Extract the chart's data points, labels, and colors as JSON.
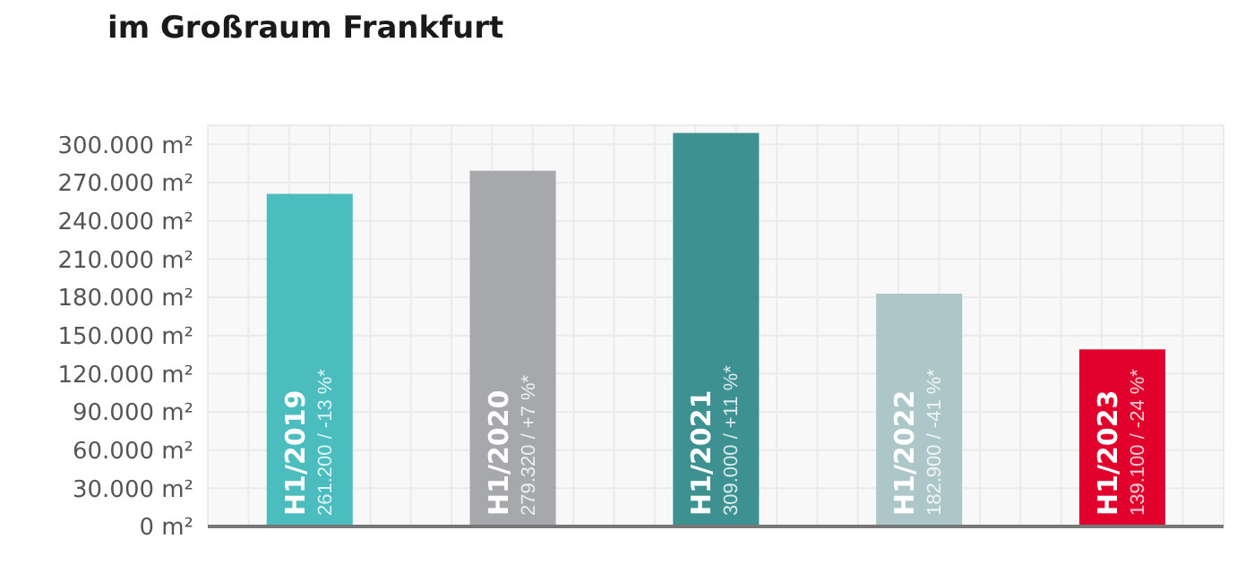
{
  "chart_data": {
    "type": "bar",
    "title": "im Großraum Frankfurt",
    "categories": [
      "H1/2019",
      "H1/2020",
      "H1/2021",
      "H1/2022",
      "H1/2023"
    ],
    "values": [
      261200,
      279320,
      309000,
      182900,
      139100
    ],
    "colors": [
      "#4bbdbf",
      "#a7a8ac",
      "#3d9291",
      "#adc6c8",
      "#e2002d"
    ],
    "value_labels": [
      "261.200 / -13 %*",
      "279.320 / +7 %*",
      "309.000 / +11 %*",
      "182.900 / -41 %*",
      "139.100 / -24 %*"
    ],
    "ylim": [
      0,
      315000
    ],
    "yticks": [
      {
        "value": 0,
        "label": "0 m²"
      },
      {
        "value": 30000,
        "label": "30.000 m²"
      },
      {
        "value": 60000,
        "label": "60.000 m²"
      },
      {
        "value": 90000,
        "label": "90.000 m²"
      },
      {
        "value": 120000,
        "label": "120.000 m²"
      },
      {
        "value": 150000,
        "label": "150.000 m²"
      },
      {
        "value": 180000,
        "label": "180.000 m²"
      },
      {
        "value": 210000,
        "label": "210.000 m²"
      },
      {
        "value": 240000,
        "label": "240.000 m²"
      },
      {
        "value": 270000,
        "label": "270.000 m²"
      },
      {
        "value": 300000,
        "label": "300.000 m²"
      }
    ],
    "grid": true,
    "tick_labels": "y"
  }
}
